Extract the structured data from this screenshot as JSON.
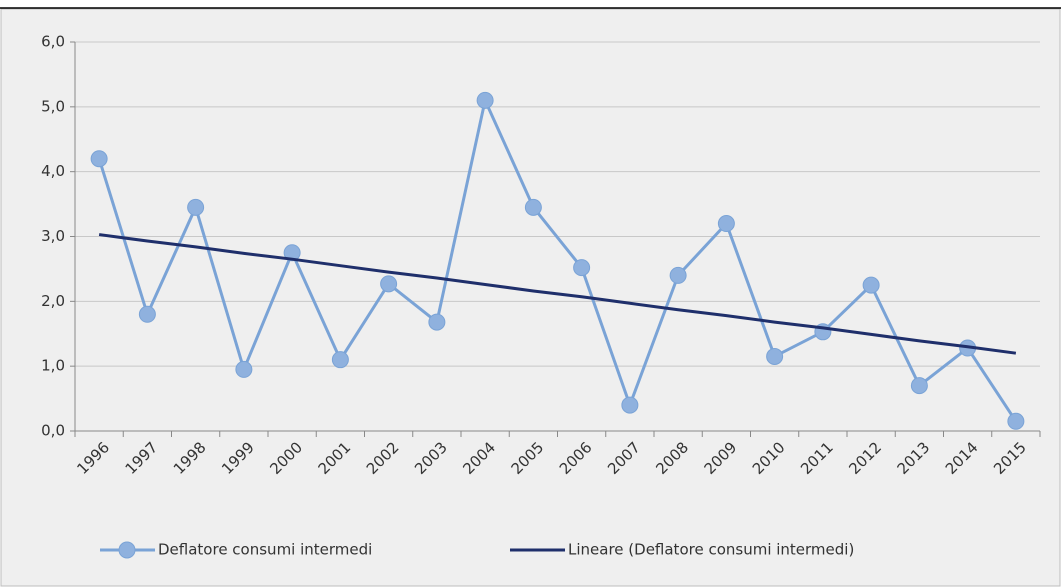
{
  "chart_data": {
    "type": "line",
    "categories": [
      "1996",
      "1997",
      "1998",
      "1999",
      "2000",
      "2001",
      "2002",
      "2003",
      "2004",
      "2005",
      "2006",
      "2007",
      "2008",
      "2009",
      "2010",
      "2011",
      "2012",
      "2013",
      "2014",
      "2015"
    ],
    "series": [
      {
        "name": "Deflatore consumi intermedi",
        "color": "#7aa3d6",
        "marker": true,
        "values": [
          4.2,
          1.8,
          3.45,
          0.95,
          2.75,
          1.1,
          2.27,
          1.68,
          5.1,
          3.45,
          2.52,
          0.4,
          2.4,
          3.2,
          1.15,
          1.53,
          2.25,
          0.7,
          1.28,
          0.15
        ]
      },
      {
        "name": "Lineare (Deflatore consumi intermedi)",
        "color": "#1f2f6b",
        "marker": false,
        "values": [
          3.03,
          2.93,
          2.84,
          2.74,
          2.65,
          2.55,
          2.45,
          2.36,
          2.26,
          2.16,
          2.07,
          1.97,
          1.87,
          1.78,
          1.68,
          1.59,
          1.49,
          1.39,
          1.3,
          1.2
        ]
      }
    ],
    "ylim": [
      0,
      6
    ],
    "yticks": [
      {
        "value": 0,
        "label": "0,0"
      },
      {
        "value": 1,
        "label": "1,0"
      },
      {
        "value": 2,
        "label": "2,0"
      },
      {
        "value": 3,
        "label": "3,0"
      },
      {
        "value": 4,
        "label": "4,0"
      },
      {
        "value": 5,
        "label": "5,0"
      },
      {
        "value": 6,
        "label": "6,0"
      }
    ],
    "grid": true,
    "legend": "bottom"
  }
}
